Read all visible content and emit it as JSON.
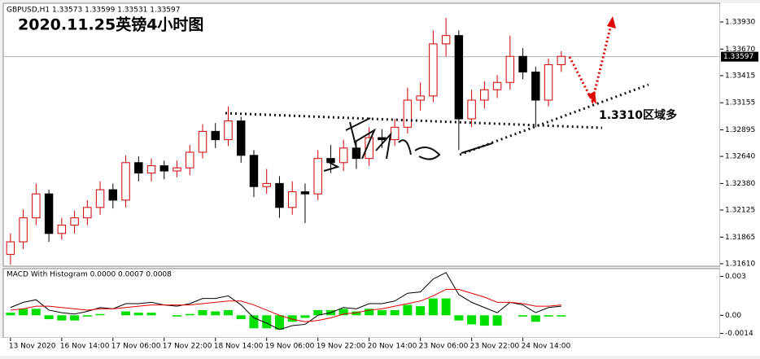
{
  "chart_data": [
    {
      "type": "candlestick",
      "title": "2020.11.25英镑4小时图",
      "header": "GBPUSD,H1  1.33573 1.33599 1.33531 1.33597",
      "annotation": "1.3310区域多",
      "up_color": "#d00000",
      "down_color": "#000000",
      "open": [
        1.317,
        1.3182,
        1.3205,
        1.3228,
        1.319,
        1.3198,
        1.3205,
        1.3215,
        1.3232,
        1.3222,
        1.3258,
        1.3248,
        1.3255,
        1.325,
        1.3253,
        1.3268,
        1.3288,
        1.328,
        1.3298,
        1.3265,
        1.3235,
        1.3238,
        1.3215,
        1.323,
        1.3228,
        1.3262,
        1.3258,
        1.3272,
        1.3262,
        1.3282,
        1.328,
        1.3292,
        1.3318,
        1.3322,
        1.3372,
        1.338,
        1.33,
        1.3318,
        1.3328,
        1.3335,
        1.336,
        1.3345,
        1.3318,
        1.3352
      ],
      "high": [
        1.319,
        1.3213,
        1.3238,
        1.3232,
        1.3205,
        1.3212,
        1.3222,
        1.324,
        1.3238,
        1.3265,
        1.3264,
        1.3262,
        1.326,
        1.326,
        1.3275,
        1.3295,
        1.3296,
        1.3312,
        1.3302,
        1.327,
        1.3252,
        1.3245,
        1.324,
        1.3238,
        1.327,
        1.3275,
        1.328,
        1.3278,
        1.3292,
        1.329,
        1.33,
        1.333,
        1.3335,
        1.3385,
        1.3397,
        1.3385,
        1.3328,
        1.3336,
        1.3342,
        1.338,
        1.3368,
        1.335,
        1.3358,
        1.3365
      ],
      "low": [
        1.316,
        1.3175,
        1.3198,
        1.3182,
        1.3184,
        1.319,
        1.3198,
        1.3208,
        1.3214,
        1.3215,
        1.324,
        1.324,
        1.3242,
        1.3244,
        1.3246,
        1.3262,
        1.3272,
        1.3274,
        1.3258,
        1.3225,
        1.3228,
        1.3205,
        1.3208,
        1.32,
        1.3222,
        1.3248,
        1.325,
        1.3252,
        1.3255,
        1.3272,
        1.3274,
        1.3286,
        1.3308,
        1.3316,
        1.336,
        1.327,
        1.3292,
        1.331,
        1.332,
        1.3328,
        1.3338,
        1.3292,
        1.3312,
        1.3345
      ],
      "close": [
        1.3182,
        1.3205,
        1.3228,
        1.319,
        1.3198,
        1.3205,
        1.3215,
        1.3232,
        1.3222,
        1.3258,
        1.3248,
        1.3255,
        1.325,
        1.3253,
        1.3268,
        1.3288,
        1.328,
        1.3298,
        1.3265,
        1.3235,
        1.3238,
        1.3215,
        1.323,
        1.3228,
        1.3262,
        1.3258,
        1.3272,
        1.3262,
        1.3282,
        1.328,
        1.3292,
        1.3318,
        1.3322,
        1.3372,
        1.338,
        1.33,
        1.3318,
        1.3328,
        1.3335,
        1.336,
        1.3345,
        1.3318,
        1.3352,
        1.336
      ],
      "current_price": 1.33597,
      "xlim": [
        -0.5,
        55.4
      ],
      "ylim": [
        1.31586,
        1.34102
      ],
      "yticks": [
        {
          "value": 1.3393,
          "label": "1.33930"
        },
        {
          "value": 1.3367,
          "label": "1.33670"
        },
        1.33415,
        1.33155,
        1.32895,
        {
          "value": 1.3264,
          "label": "1.32640"
        },
        {
          "value": 1.3238,
          "label": "1.32380"
        },
        1.32125,
        1.31865,
        {
          "value": 1.3161,
          "label": "1.31610"
        }
      ],
      "xticks": [
        {
          "value": 0,
          "label": "13 Nov 2020"
        },
        {
          "value": 4,
          "label": "16 Nov 14:00"
        },
        {
          "value": 8,
          "label": "17 Nov 06:00"
        },
        {
          "value": 12,
          "label": "17 Nov 22:00"
        },
        {
          "value": 16,
          "label": "18 Nov 14:00"
        },
        {
          "value": 20,
          "label": "19 Nov 06:00"
        },
        {
          "value": 24,
          "label": "19 Nov 22:00"
        },
        {
          "value": 28,
          "label": "20 Nov 14:00"
        },
        {
          "value": 32,
          "label": "23 Nov 06:00"
        },
        {
          "value": 36,
          "label": "23 Nov 22:00"
        },
        {
          "value": 40,
          "label": "24 Nov 14:00"
        }
      ]
    },
    {
      "type": "macd",
      "title": "MACD With Histogram 0.0000 0.0007 0.0008",
      "histogram": {
        "color": "#00e000",
        "values": [
          0.0002,
          0.0005,
          0.0005,
          -0.0003,
          -0.0004,
          -0.0004,
          -0.0001,
          0.0001,
          0,
          0.0003,
          0.0002,
          0.0002,
          0,
          -0.0001,
          0.0001,
          0.0004,
          0.0003,
          0.0004,
          -0.0003,
          -0.001,
          -0.001,
          -0.0011,
          -0.0005,
          -0.0002,
          0.0004,
          0.0004,
          0.0005,
          0.0003,
          0.0005,
          0.0004,
          0.0004,
          0.0008,
          0.0007,
          0.0013,
          0.0013,
          -0.0004,
          -0.0007,
          -0.0008,
          -0.0008,
          0,
          -0.0001,
          -0.0005,
          -0.0001,
          -0.0001
        ]
      },
      "series": [
        {
          "color": "#000000",
          "values": [
            0.0006,
            0.001,
            0.0012,
            0.0004,
            0.0002,
            0.0001,
            0.0003,
            0.0006,
            0.0005,
            0.0009,
            0.0009,
            0.001,
            0.0008,
            0.0007,
            0.0009,
            0.0013,
            0.0013,
            0.0015,
            0.0008,
            -0.0002,
            -0.0006,
            -0.0011,
            -0.0008,
            -0.0007,
            0,
            0.0002,
            0.0006,
            0.0005,
            0.0009,
            0.0009,
            0.0011,
            0.0017,
            0.0018,
            0.0028,
            0.0033,
            0.0016,
            0.001,
            0.0006,
            0.0002,
            0.001,
            0.0008,
            0.0002,
            0.0006,
            0.0007
          ]
        },
        {
          "color": "#e00000",
          "values": [
            0.0004,
            0.0005,
            0.0007,
            0.0007,
            0.0006,
            0.0005,
            0.0004,
            0.0005,
            0.0005,
            0.0006,
            0.0007,
            0.0008,
            0.0008,
            0.0008,
            0.0008,
            0.0009,
            0.001,
            0.0011,
            0.0011,
            0.0008,
            0.0004,
            0,
            -0.0003,
            -0.0005,
            -0.0004,
            -0.0002,
            0.0001,
            0.0002,
            0.0004,
            0.0005,
            0.0007,
            0.0009,
            0.0011,
            0.0015,
            0.002,
            0.002,
            0.0017,
            0.0014,
            0.001,
            0.001,
            0.0009,
            0.0007,
            0.0007,
            0.0008
          ]
        }
      ],
      "ylim": [
        -0.00174,
        0.0036
      ],
      "yticks": [
        0.003,
        {
          "value": 0,
          "label": "0.00"
        },
        -0.0014
      ]
    }
  ]
}
